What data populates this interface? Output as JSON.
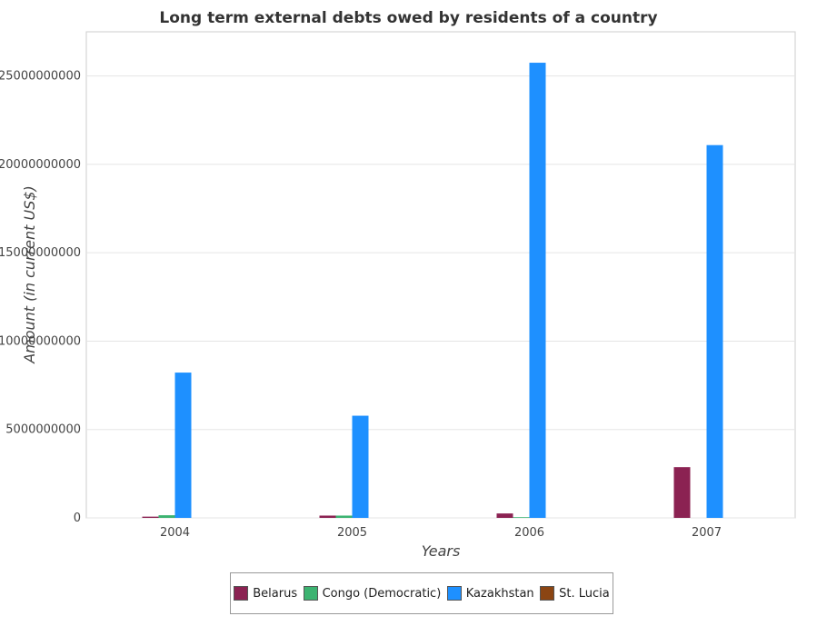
{
  "chart_data": {
    "type": "bar",
    "title": "Long term external debts owed by residents of a country",
    "xlabel": "Years",
    "ylabel": "Amount (in current US$)",
    "categories": [
      "2004",
      "2005",
      "2006",
      "2007"
    ],
    "ylim": [
      0,
      27500000000
    ],
    "yticks": [
      0,
      5000000000,
      10000000000,
      15000000000,
      20000000000,
      25000000000
    ],
    "ytick_labels": [
      "0",
      "5000000000",
      "10000000000",
      "15000000000",
      "20000000000",
      "25000000000"
    ],
    "grid": true,
    "legend_position": "bottom",
    "series": [
      {
        "name": "Belarus",
        "color": "#8b2252",
        "values": [
          70000000,
          130000000,
          250000000,
          2870000000
        ]
      },
      {
        "name": "Congo (Democratic)",
        "color": "#3cb371",
        "values": [
          150000000,
          130000000,
          40000000,
          0
        ]
      },
      {
        "name": "Kazakhstan",
        "color": "#1e90ff",
        "values": [
          8220000000,
          5780000000,
          25750000000,
          21090000000
        ]
      },
      {
        "name": "St. Lucia",
        "color": "#8b4513",
        "values": [
          0,
          0,
          0,
          0
        ]
      }
    ]
  }
}
